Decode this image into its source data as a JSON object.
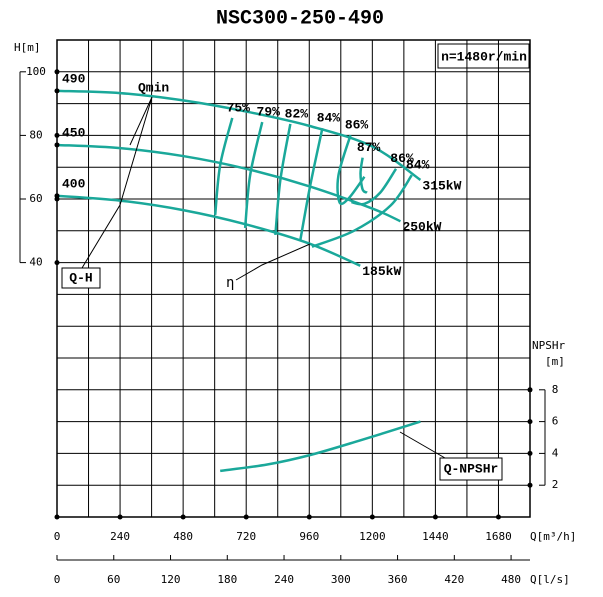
{
  "chart_data": {
    "type": "pump-curve",
    "title": "NSC300-250-490",
    "speed": "n=1480r/min",
    "y_label": "H[m]",
    "y2_label": "NPSHr",
    "y2_unit": "[m]",
    "x_label": "Q[m³/h]",
    "x2_label": "Q[l/s]",
    "xlim": [
      0,
      1800
    ],
    "xticks": [
      0,
      240,
      480,
      720,
      960,
      1200,
      1440,
      1680
    ],
    "x2lim": [
      0,
      500
    ],
    "x2ticks": [
      0,
      60,
      120,
      180,
      240,
      300,
      360,
      420,
      480
    ],
    "ylim": [
      -40,
      110
    ],
    "yticks": [
      40,
      60,
      80,
      100
    ],
    "y2lim": [
      0,
      30
    ],
    "y2ticks": [
      2,
      4,
      6,
      8
    ],
    "grid": true,
    "color": "#1aa89a",
    "series": [
      {
        "name": "490",
        "power": "315kW",
        "x": [
          0,
          240,
          480,
          720,
          960,
          1200,
          1383
        ],
        "values": [
          94,
          93.3,
          91,
          87.5,
          83,
          76.5,
          66
        ]
      },
      {
        "name": "450",
        "power": "250kW",
        "x": [
          0,
          240,
          480,
          720,
          960,
          1200,
          1307
        ],
        "values": [
          77,
          76,
          73.5,
          69.5,
          64,
          57,
          53
        ]
      },
      {
        "name": "400",
        "power": "185kW",
        "x": [
          0,
          240,
          480,
          720,
          960,
          1154
        ],
        "values": [
          61,
          59.5,
          56.5,
          52,
          46,
          39
        ]
      },
      {
        "name": "Q-NPSHr",
        "axis": "y2",
        "x": [
          621,
          800,
          964,
          1150,
          1383
        ],
        "values": [
          2.9,
          3.3,
          3.9,
          4.8,
          6
        ]
      }
    ],
    "efficiency": [
      {
        "name": "75%",
        "x": [
          667,
          621,
          602
        ],
        "values": [
          85.5,
          70.7,
          55
        ]
      },
      {
        "name": "79%",
        "x": [
          781,
          735,
          716
        ],
        "values": [
          84.2,
          67.5,
          50.9
        ]
      },
      {
        "name": "82%",
        "x": [
          888,
          850,
          831
        ],
        "values": [
          83.6,
          66,
          48.7
        ]
      },
      {
        "name": "84%",
        "x": [
          1010,
          964,
          926
        ],
        "values": [
          82.3,
          64.4,
          47.1
        ]
      },
      {
        "name": "86%",
        "x": [
          1117,
          1071,
          1075,
          1110,
          1170
        ],
        "values": [
          80.1,
          67.4,
          59,
          60.2,
          67
        ]
      },
      {
        "name": "87%",
        "x": [
          1163,
          1155,
          1163,
          1180
        ],
        "values": [
          73,
          68,
          63,
          62
        ]
      },
      {
        "name": "86%",
        "x": [
          1290,
          1230,
          1170,
          1120
        ],
        "values": [
          69.5,
          62,
          58.5,
          59
        ]
      },
      {
        "name": "84%",
        "x": [
          1350,
          1270,
          1130,
          970
        ],
        "values": [
          67.5,
          58,
          50,
          45
        ]
      }
    ],
    "annotations": {
      "qmin": "Qmin",
      "qh": "Q-H",
      "eta": "η",
      "npshr": "Q-NPSHr"
    }
  }
}
